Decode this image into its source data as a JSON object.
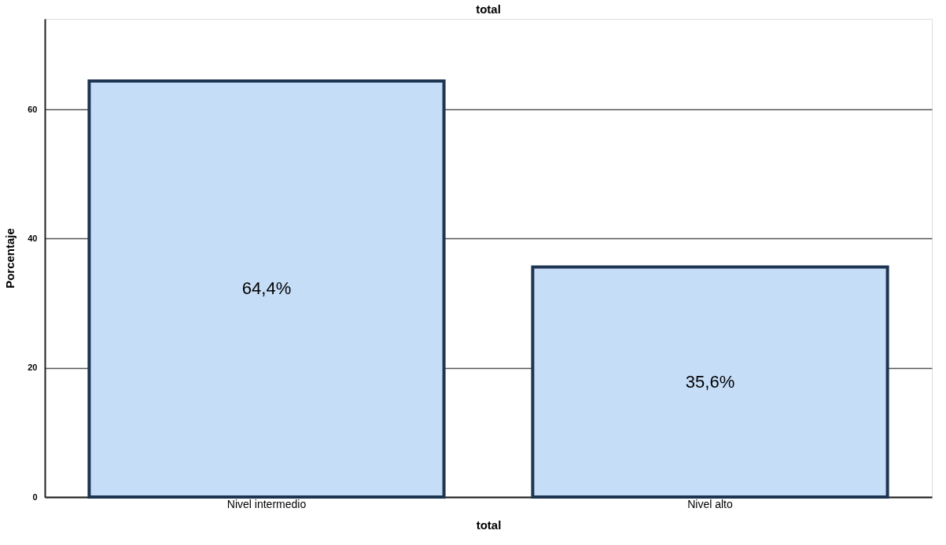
{
  "chart_data": {
    "type": "bar",
    "title": "total",
    "xlabel": "total",
    "ylabel": "Porcentaje",
    "categories": [
      "Nivel intermedio",
      "Nivel alto"
    ],
    "series": [
      {
        "color": "#c6ddf8",
        "values": [
          64.4,
          35.6
        ],
        "value_labels": [
          "64,4%",
          "35,6%"
        ]
      }
    ],
    "ylim": [
      0,
      74
    ],
    "yticks": [
      0,
      20,
      40,
      60
    ],
    "grid": "y"
  }
}
